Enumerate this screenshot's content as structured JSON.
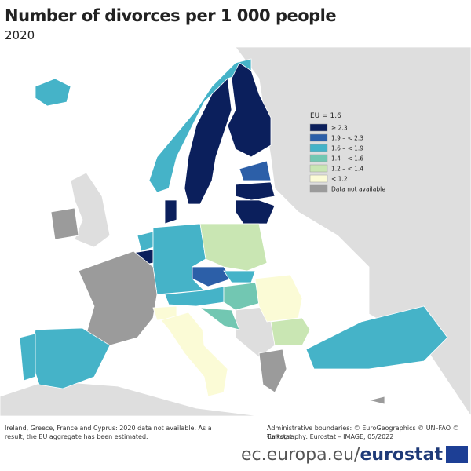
{
  "header": {
    "title": "Number of divorces per 1 000 people",
    "subtitle": "2020"
  },
  "legend": {
    "title": "EU = 1.6",
    "items": [
      {
        "label": "≥ 2.3",
        "color": "#0b1f5c"
      },
      {
        "label": "1.9 – < 2.3",
        "color": "#2c5fa8"
      },
      {
        "label": "1.6 – < 1.9",
        "color": "#45b3c8"
      },
      {
        "label": "1.4 – < 1.6",
        "color": "#72c7b2"
      },
      {
        "label": "1.2 – < 1.4",
        "color": "#c9e6b3"
      },
      {
        "label": "< 1.2",
        "color": "#fbfbd6"
      },
      {
        "label": "Data not available",
        "color": "#9b9b9b"
      }
    ]
  },
  "footer": {
    "note": "Ireland, Greece, France and Cyprus: 2020 data not available. As a result, the EU aggregate has been estimated.",
    "boundaries": "Administrative boundaries: © EuroGeographics © UN–FAO © Turkstat",
    "cartography": "Cartography: Eurostat – IMAGE, 05/2022",
    "site": "ec.europa.eu/",
    "brand": "eurostat"
  }
}
